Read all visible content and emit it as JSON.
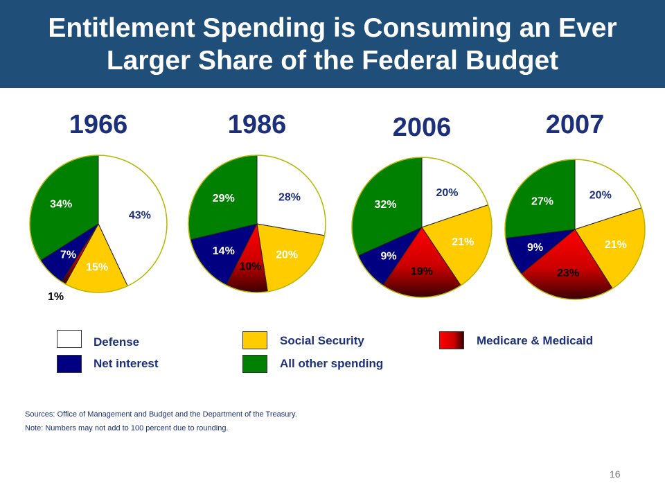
{
  "header": {
    "title": "Entitlement Spending is Consuming an Ever Larger Share of the Federal Budget"
  },
  "chart_data": {
    "type": "pie",
    "title": "Entitlement Spending is Consuming an Ever Larger Share of the Federal Budget",
    "categories": [
      "Defense",
      "Social Security",
      "Medicare & Medicaid",
      "Net interest",
      "All other spending"
    ],
    "colors": {
      "Defense": "#ffffff",
      "Social Security": "#ffcc00",
      "Medicare & Medicaid": "#e60000",
      "Net interest": "#000080",
      "All other spending": "#008000"
    },
    "charts": [
      {
        "year": "1966",
        "values": [
          43,
          15,
          1,
          7,
          34
        ],
        "labels": [
          "43%",
          "15%",
          "1%",
          "7%",
          "34%"
        ]
      },
      {
        "year": "1986",
        "values": [
          28,
          20,
          10,
          14,
          29
        ],
        "labels": [
          "28%",
          "20%",
          "10%",
          "14%",
          "29%"
        ]
      },
      {
        "year": "2006",
        "values": [
          20,
          21,
          19,
          9,
          32
        ],
        "labels": [
          "20%",
          "21%",
          "19%",
          "9%",
          "32%"
        ]
      },
      {
        "year": "2007",
        "values": [
          20,
          21,
          23,
          9,
          27
        ],
        "labels": [
          "20%",
          "21%",
          "23%",
          "9%",
          "27%"
        ]
      }
    ]
  },
  "legend": {
    "defense": "Defense",
    "net_interest": "Net interest",
    "social_security": "Social Security",
    "all_other": "All other spending",
    "medicare_medicaid": "Medicare & Medicaid"
  },
  "notes": {
    "sources": "Sources: Office of Management and Budget and the Department of the Treasury.",
    "note": "Note:  Numbers may not add to 100 percent due to rounding."
  },
  "page_number": "16"
}
